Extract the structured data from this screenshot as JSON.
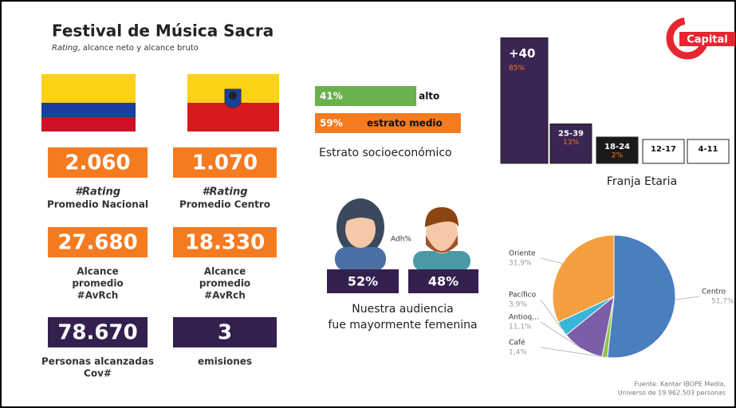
{
  "header": {
    "title": "Festival de Música Sacra",
    "subtitle_italic": "Rating",
    "subtitle_rest": ", alcance neto y alcance bruto"
  },
  "logo": "Capital",
  "kpis": [
    {
      "value": "2.060",
      "color": "#f47b20",
      "note": "#Rating",
      "label_lines": [
        "Promedio Nacional"
      ]
    },
    {
      "value": "1.070",
      "color": "#f47b20",
      "note": "#Rating",
      "label_lines": [
        "Promedio Centro"
      ]
    },
    {
      "value": "27.680",
      "color": "#f47b20",
      "label_lines": [
        "Alcance",
        "promedio",
        "#AvRch"
      ]
    },
    {
      "value": "18.330",
      "color": "#f47b20",
      "label_lines": [
        "Alcance",
        "promedio",
        "#AvRch"
      ]
    },
    {
      "value": "78.670",
      "color": "#33204f",
      "label_lines": [
        "Personas alcanzadas",
        "Cov#"
      ]
    },
    {
      "value": "3",
      "color": "#33204f",
      "label_lines": [
        "emisiones"
      ]
    }
  ],
  "audience": {
    "label": "Adh%",
    "female": "52%",
    "male": "48%",
    "caption_lines": [
      "Nuestra audiencia",
      "fue mayormente femenina"
    ]
  },
  "chart_data": [
    {
      "type": "bar",
      "orientation": "horizontal",
      "title": "Estrato socioeconómico",
      "categories": [
        "alto",
        "estrato medio"
      ],
      "values": [
        41,
        59
      ],
      "value_labels": [
        "41%",
        "59%"
      ],
      "colors": [
        "#6ab04c",
        "#f47b20"
      ]
    },
    {
      "type": "bar",
      "orientation": "vertical",
      "title": "Franja Etaria",
      "categories": [
        "+40",
        "25-39",
        "18-24",
        "12-17",
        "4-11"
      ],
      "values": [
        85,
        13,
        2,
        0,
        0
      ],
      "value_labels": [
        "85%",
        "13%",
        "2%",
        null,
        null
      ],
      "colors": [
        "#3a2553",
        "#3a2553",
        "#1a1a1a",
        "#ffffff",
        "#ffffff"
      ]
    },
    {
      "type": "pie",
      "categories": [
        "Centro",
        "Café",
        "Antioq...",
        "Pacífico",
        "Oriente"
      ],
      "values": [
        51.7,
        1.4,
        11.1,
        3.9,
        31.9
      ],
      "value_labels": [
        "51,7%",
        "1,4%",
        "11,1%",
        "3,9%",
        "31,9%"
      ],
      "colors": [
        "#4a7ebf",
        "#8bc34a",
        "#7b5ea7",
        "#3bb5d8",
        "#f4a040"
      ]
    }
  ],
  "source_lines": [
    "Fuente: Kantar IBOPE Media,",
    "Universo de 19.962.503 personas"
  ]
}
